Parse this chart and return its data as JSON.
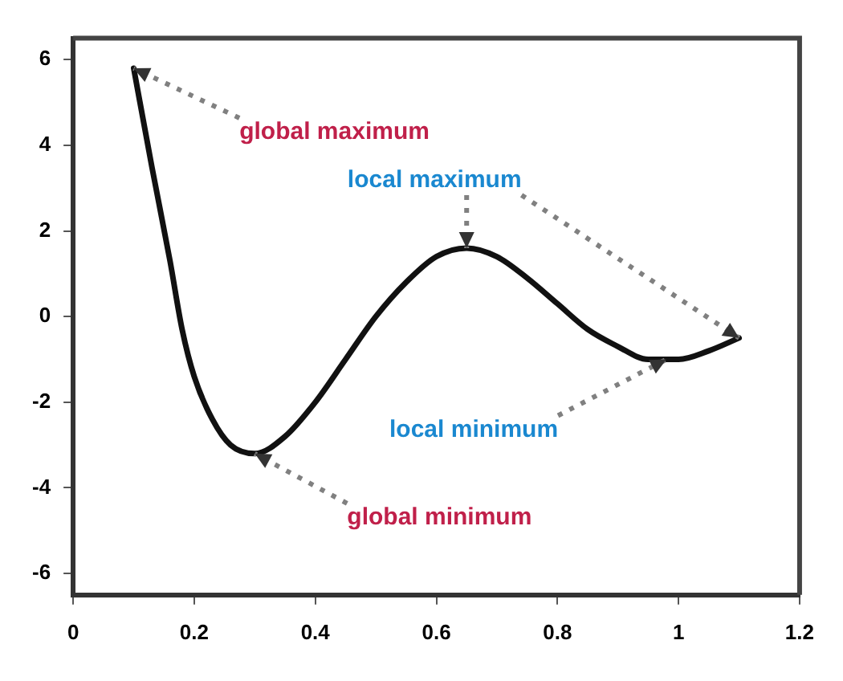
{
  "chart_data": {
    "type": "line",
    "x": [
      0.1,
      0.13,
      0.16,
      0.18,
      0.2,
      0.23,
      0.26,
      0.3,
      0.35,
      0.4,
      0.45,
      0.5,
      0.55,
      0.6,
      0.65,
      0.7,
      0.75,
      0.8,
      0.85,
      0.9,
      0.95,
      1.0,
      1.05,
      1.1
    ],
    "series": [
      {
        "color": "#111111",
        "values": [
          5.8,
          3.5,
          1.3,
          -0.3,
          -1.4,
          -2.4,
          -3.0,
          -3.2,
          -2.8,
          -2.0,
          -1.0,
          0.0,
          0.8,
          1.4,
          1.6,
          1.4,
          0.9,
          0.3,
          -0.3,
          -0.7,
          -1.0,
          -1.0,
          -0.8,
          -0.5
        ]
      }
    ],
    "xlim": [
      0,
      1.2
    ],
    "xticks": [
      0,
      0.2,
      0.4,
      0.6,
      0.8,
      1,
      1.2
    ],
    "ylim": [
      -6.5,
      6.5
    ],
    "yticks": [
      -6,
      -4,
      -2,
      0,
      2,
      4,
      6
    ],
    "grid": false,
    "legend": false,
    "marker": "none",
    "line_style": "solid",
    "annotations": [
      {
        "text": "global maximum",
        "x": 0.1,
        "y": 5.8
      },
      {
        "text": "local maximum",
        "x": 0.65,
        "y": 1.6
      },
      {
        "text": "local minimum",
        "x": 0.98,
        "y": -1.0
      },
      {
        "text": "global minimum",
        "x": 0.3,
        "y": -3.2
      }
    ]
  }
}
